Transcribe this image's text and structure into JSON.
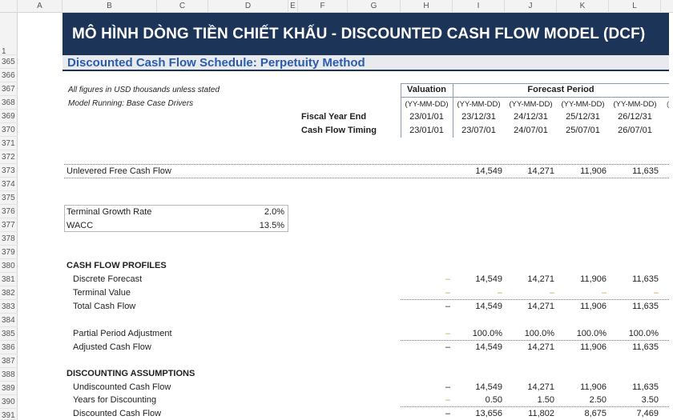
{
  "columns": [
    "A",
    "B",
    "C",
    "D",
    "E",
    "F",
    "G",
    "H",
    "I",
    "J",
    "K",
    "L"
  ],
  "rows": [
    "1",
    "365",
    "366",
    "367",
    "368",
    "369",
    "370",
    "371",
    "372",
    "373",
    "374",
    "375",
    "376",
    "377",
    "378",
    "379",
    "380",
    "381",
    "382",
    "383",
    "384",
    "385",
    "386",
    "387",
    "388",
    "389",
    "390",
    "391"
  ],
  "banner": "MÔ HÌNH DÒNG TIỀN CHIẾT KHẤU - DISCOUNTED CASH FLOW MODEL (DCF)",
  "section_title": "Discounted Cash Flow Schedule: Perpetuity Method",
  "notes": {
    "units": "All figures in USD thousands unless stated",
    "running": "Model Running: Base Case Drivers"
  },
  "header": {
    "valuation": "Valuation",
    "forecast": "Forecast Period",
    "formats": [
      "(YY-MM-DD)",
      "(YY-MM-DD)",
      "(YY-MM-DD)",
      "(YY-MM-DD)",
      "(YY-MM-DD)"
    ],
    "fiscal_label": "Fiscal Year End",
    "fiscal": [
      "23/01/01",
      "23/12/31",
      "24/12/31",
      "25/12/31",
      "26/12/31"
    ],
    "timing_label": "Cash Flow Timing",
    "timing": [
      "23/01/01",
      "23/07/01",
      "24/07/01",
      "25/07/01",
      "26/07/01"
    ]
  },
  "ufcf": {
    "label": "Unlevered Free Cash Flow",
    "values": [
      "14,549",
      "14,271",
      "11,906",
      "11,635"
    ]
  },
  "assumptions": {
    "tgr_label": "Terminal Growth Rate",
    "tgr": "2.0%",
    "wacc_label": "WACC",
    "wacc": "13.5%"
  },
  "profiles": {
    "title": "CASH FLOW PROFILES",
    "rows": [
      {
        "label": "Discrete Forecast",
        "val": "–",
        "values": [
          "14,549",
          "14,271",
          "11,906",
          "11,635"
        ]
      },
      {
        "label": "Terminal Value",
        "val": "–",
        "values": [
          "–",
          "–",
          "–",
          "–"
        ]
      },
      {
        "label": "Total Cash Flow",
        "val": "–",
        "values": [
          "14,549",
          "14,271",
          "11,906",
          "11,635"
        ]
      },
      {
        "label": "Partial Period Adjustment",
        "val": "–",
        "values": [
          "100.0%",
          "100.0%",
          "100.0%",
          "100.0%"
        ]
      },
      {
        "label": "Adjusted Cash Flow",
        "val": "–",
        "values": [
          "14,549",
          "14,271",
          "11,906",
          "11,635"
        ]
      }
    ]
  },
  "discounting": {
    "title": "DISCOUNTING ASSUMPTIONS",
    "rows": [
      {
        "label": "Undiscounted Cash Flow",
        "val": "–",
        "values": [
          "14,549",
          "14,271",
          "11,906",
          "11,635"
        ]
      },
      {
        "label": "Years for Discounting",
        "val": "–",
        "values": [
          "0.50",
          "1.50",
          "2.50",
          "3.50"
        ]
      },
      {
        "label": "Discounted Cash Flow",
        "val": "–",
        "values": [
          "13,656",
          "11,802",
          "8,675",
          "7,469"
        ]
      }
    ]
  }
}
